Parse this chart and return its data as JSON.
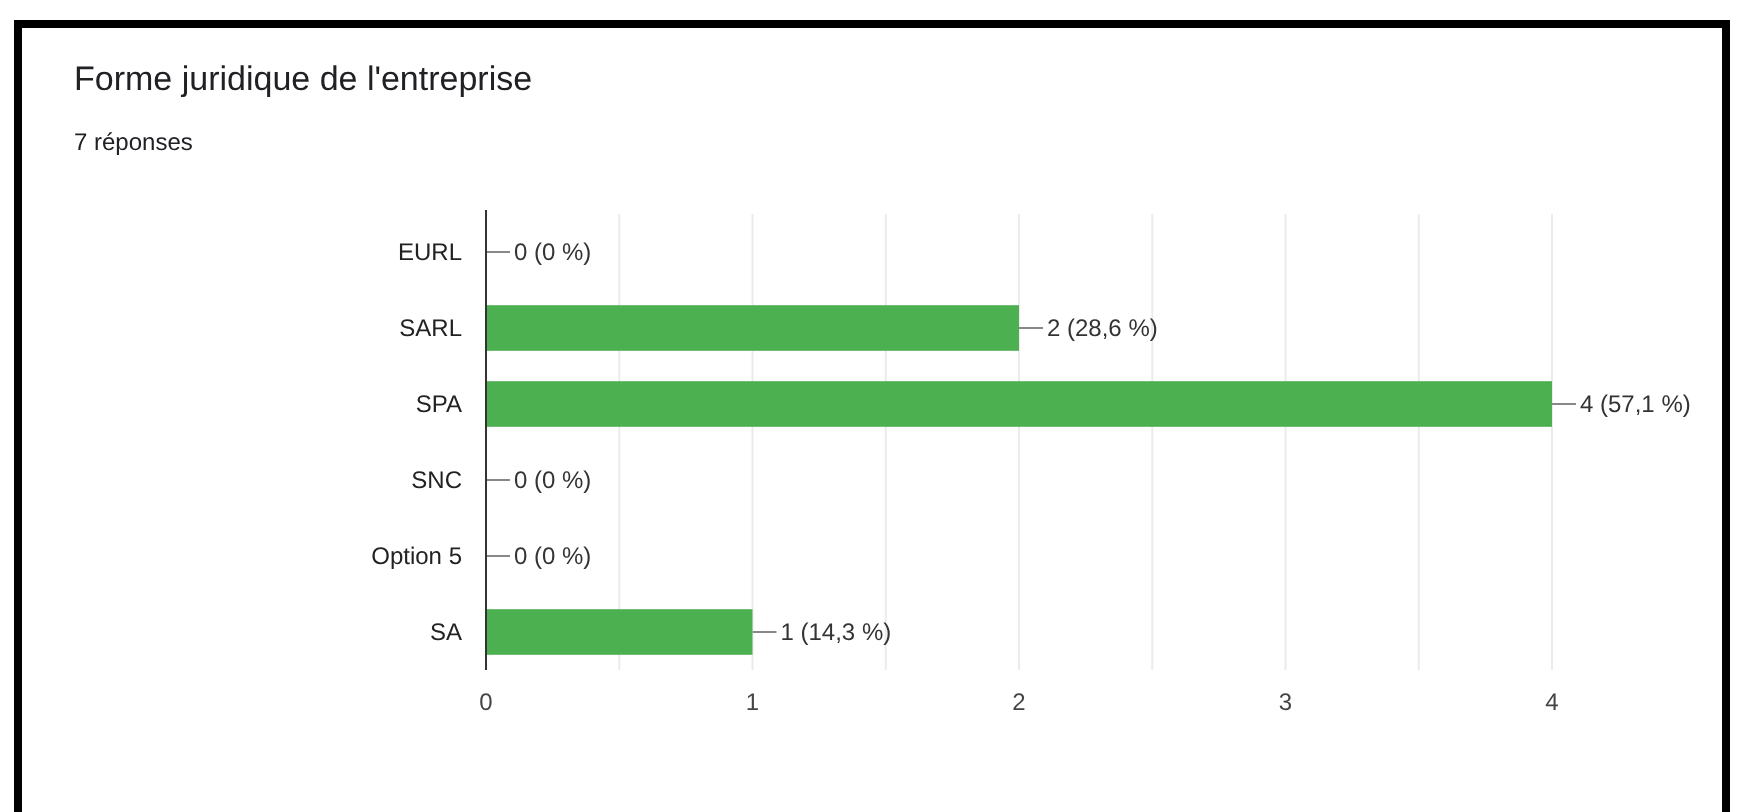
{
  "chart_data": {
    "type": "bar",
    "orientation": "horizontal",
    "title": "Forme juridique de l'entreprise",
    "subtitle": "7 réponses",
    "categories": [
      "EURL",
      "SARL",
      "SPA",
      "SNC",
      "Option 5",
      "SA"
    ],
    "values": [
      0,
      2,
      4,
      0,
      0,
      1
    ],
    "value_labels": [
      "0 (0 %)",
      "2 (28,6 %)",
      "4 (57,1 %)",
      "0 (0 %)",
      "0 (0 %)",
      "1 (14,3 %)"
    ],
    "color": "#4caf50",
    "xlim": [
      0,
      4
    ],
    "xticks": [
      0,
      {
        "value": 0.5,
        "label": null
      },
      1,
      {
        "value": 1.5,
        "label": null
      },
      2,
      {
        "value": 2.5,
        "label": null
      },
      3,
      {
        "value": 3.5,
        "label": null
      },
      4
    ],
    "grid": "x"
  }
}
